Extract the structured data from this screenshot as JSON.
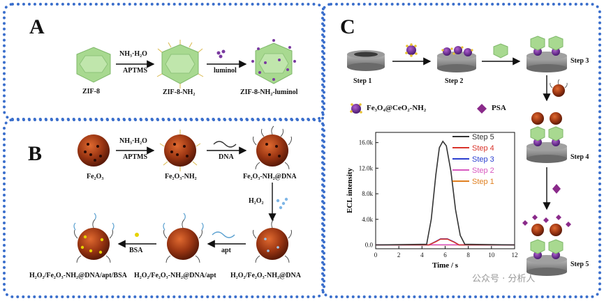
{
  "panels": {
    "a": "A",
    "b": "B",
    "c": "C"
  },
  "panel_a": {
    "labels": [
      "ZIF-8",
      "ZIF-8-NH₂",
      "ZIF-8-NH₂-luminol"
    ],
    "arrow1_top": "NH₃·H₂O",
    "arrow1_bottom": "APTMS",
    "arrow2_bottom": "luminol"
  },
  "panel_b": {
    "labels": [
      "Fe₂O₃",
      "Fe₂O₃-NH₂",
      "Fe₂O₃-NH₂@DNA",
      "H₂O₂/Fe₂O₃-NH₂@DNA",
      "H₂O₂/Fe₂O₃-NH₂@DNA/apt",
      "H₂O₂/Fe₂O₃-NH₂@DNA/apt/BSA"
    ],
    "arrow1_top": "NH₃·H₂O",
    "arrow1_bottom": "APTMS",
    "arrow2_bottom": "DNA",
    "arrow3_left": "H₂O₂",
    "arrow4_bottom": "apt",
    "arrow5_bottom": "BSA"
  },
  "panel_c": {
    "steps": [
      "Step 1",
      "Step 2",
      "Step 3",
      "Step 4",
      "Step 5"
    ],
    "legend_items": [
      "Fe₃O₄@CeO₂-NH₂",
      "PSA"
    ]
  },
  "colors": {
    "frame": "#3b6fcc",
    "zif": "#9fd48a",
    "fe2o3": "#8a2d10",
    "electrode": "#8c8c8c",
    "psa": "#8a2a8a"
  },
  "watermark": "公众号 · 分析人",
  "chart_data": {
    "type": "line",
    "xlabel": "Time / s",
    "ylabel": "ECL intensity",
    "xlim": [
      0,
      12
    ],
    "ylim": [
      -600,
      17600
    ],
    "xticks": [
      "0",
      "2",
      "4",
      "6",
      "8",
      "10",
      "12"
    ],
    "yticks": [
      "0.0",
      "4.0k",
      "8.0k",
      "12.0k",
      "16.0k"
    ],
    "legend_position": "top-right",
    "series": [
      {
        "name": "Step 5",
        "color": "#333333",
        "x": [
          0,
          4.4,
          4.8,
          5.2,
          5.5,
          5.8,
          6.1,
          6.5,
          6.9,
          7.3,
          7.7,
          12
        ],
        "y": [
          0,
          100,
          4000,
          11000,
          15200,
          16200,
          15500,
          11500,
          5500,
          1500,
          100,
          0
        ]
      },
      {
        "name": "Step 4",
        "color": "#d9342b",
        "x": [
          0,
          4.6,
          5.2,
          5.6,
          6.2,
          6.8,
          7.2,
          12
        ],
        "y": [
          0,
          0,
          500,
          900,
          900,
          400,
          0,
          0
        ]
      },
      {
        "name": "Step 3",
        "color": "#2b3fcf",
        "x": [
          0,
          4.6,
          5.2,
          5.6,
          6.2,
          6.8,
          7.2,
          12
        ],
        "y": [
          0,
          0,
          550,
          950,
          950,
          450,
          0,
          0
        ]
      },
      {
        "name": "Step 2",
        "color": "#d858c0",
        "x": [
          0,
          12
        ],
        "y": [
          20,
          20
        ]
      },
      {
        "name": "Step 1",
        "color": "#e08020",
        "x": [
          0,
          12
        ],
        "y": [
          10,
          10
        ]
      }
    ]
  }
}
